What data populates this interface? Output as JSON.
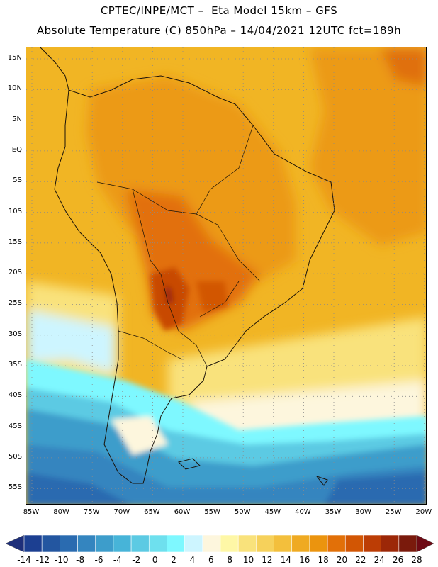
{
  "title_line1": "CPTEC/INPE/MCT –  Eta Model 15km – GFS",
  "title_line2": "Absolute Temperature (C) 850hPa – 14/04/2021 12UTC fct=189h",
  "lat_labels": [
    "15N",
    "10N",
    "5N",
    "EQ",
    "5S",
    "10S",
    "15S",
    "20S",
    "25S",
    "30S",
    "35S",
    "40S",
    "45S",
    "50S",
    "55S"
  ],
  "lon_labels": [
    "85W",
    "80W",
    "75W",
    "70W",
    "65W",
    "60W",
    "55W",
    "50W",
    "45W",
    "40W",
    "35W",
    "30W",
    "25W",
    "20W"
  ],
  "colorbar": {
    "labels": [
      "-14",
      "-12",
      "-10",
      "-8",
      "-6",
      "-4",
      "-2",
      "0",
      "2",
      "4",
      "6",
      "8",
      "10",
      "12",
      "14",
      "16",
      "18",
      "20",
      "22",
      "24",
      "26",
      "28"
    ],
    "colors": [
      "#1c3f91",
      "#2356a0",
      "#2a6bb0",
      "#3485bf",
      "#3d9dcb",
      "#47b4d8",
      "#5ccae3",
      "#6ee0ee",
      "#7ef8ff",
      "#cdf5ff",
      "#fdf6dd",
      "#fef7a6",
      "#f9e27b",
      "#f6d15b",
      "#f3bf3c",
      "#efaa22",
      "#eb940e",
      "#e27008",
      "#d25604",
      "#bc3d05",
      "#9c2707",
      "#7a1a0c"
    ],
    "left_arrow_color": "#1e2f7a",
    "right_arrow_color": "#6e0a14"
  },
  "map": {
    "ocean_background_color": "#f1b524",
    "land_outline_color": "#1a1208",
    "grid_color": "#8a8a8a"
  }
}
